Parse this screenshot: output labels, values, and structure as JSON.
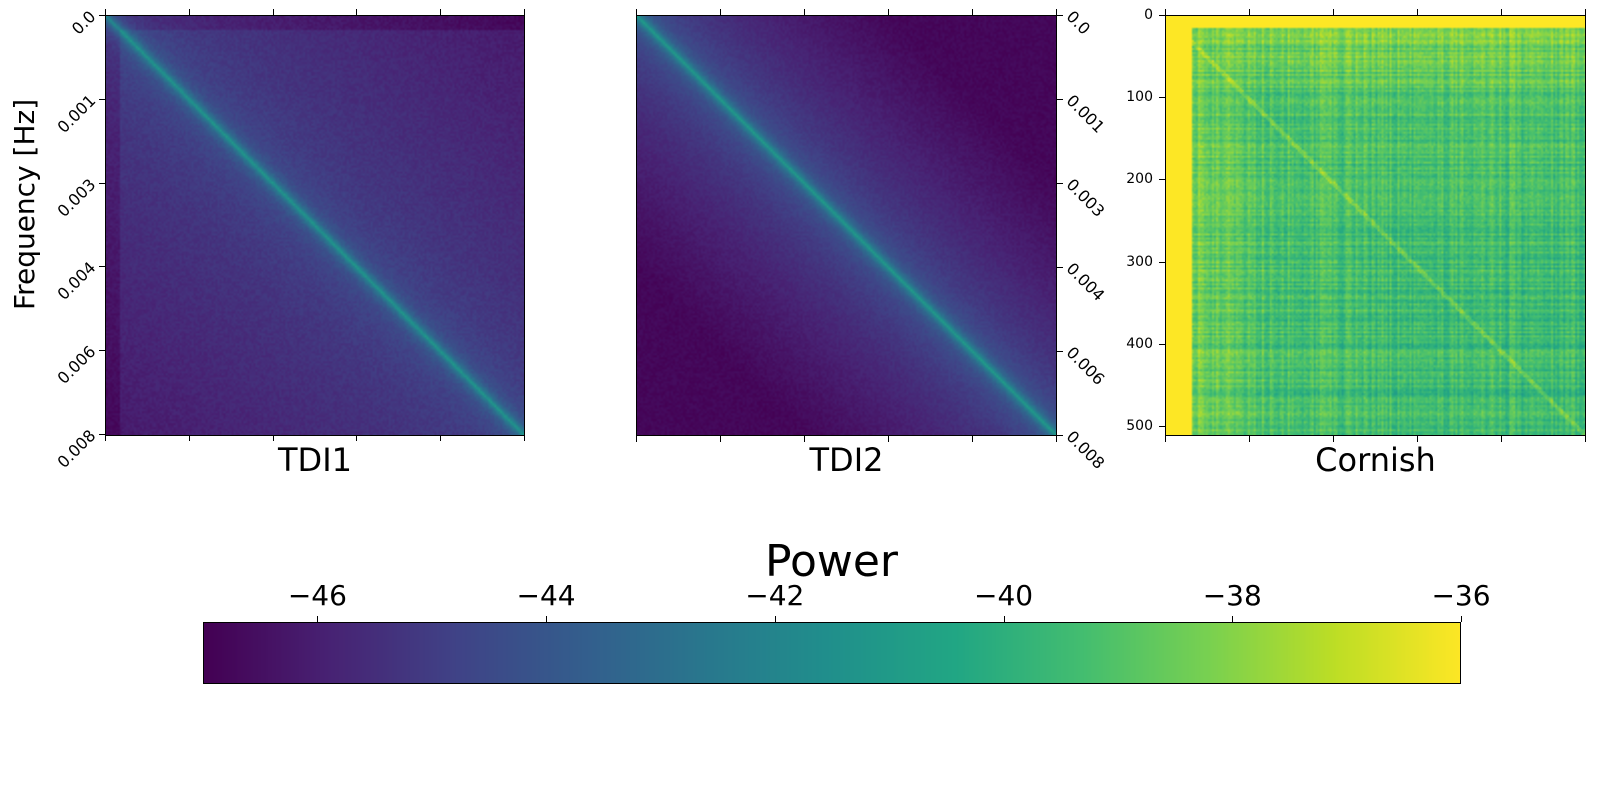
{
  "figure": {
    "ylabel": "Frequency [Hz]"
  },
  "panels": [
    {
      "id": "tdi1",
      "title": "TDI1",
      "yticks": [
        "0.0",
        "0.001",
        "0.003",
        "0.004",
        "0.006",
        "0.008"
      ],
      "ytick_side": "left",
      "ytick_rotation_deg": -45
    },
    {
      "id": "tdi2",
      "title": "TDI2",
      "yticks": [
        "0.0",
        "0.001",
        "0.003",
        "0.004",
        "0.006",
        "0.008"
      ],
      "ytick_side": "right",
      "ytick_rotation_deg": 45
    },
    {
      "id": "cornish",
      "title": "Cornish",
      "yticks": [
        "0",
        "100",
        "200",
        "300",
        "400",
        "500"
      ],
      "ytick_side": "left",
      "ytick_rotation_deg": 0
    }
  ],
  "colorbar": {
    "title": "Power",
    "ticks": [
      "−46",
      "−44",
      "−42",
      "−40",
      "−38",
      "−36"
    ],
    "tick_values": [
      -46,
      -44,
      -42,
      -40,
      -38,
      -36
    ],
    "vmin": -47,
    "vmax": -36,
    "colormap": "viridis"
  },
  "chart_data": [
    {
      "type": "heatmap",
      "title": "TDI1",
      "ylabel": "Frequency [Hz]",
      "y_tick_labels": [
        "0.0",
        "0.001",
        "0.003",
        "0.004",
        "0.006",
        "0.008"
      ],
      "ylim": [
        0.0,
        0.008
      ],
      "colorbar_label": "Power",
      "value_range": [
        -47,
        -36
      ],
      "description_values": {
        "diagonal": -42,
        "background": -45,
        "corner_low": -46.5
      }
    },
    {
      "type": "heatmap",
      "title": "TDI2",
      "y_tick_labels": [
        "0.0",
        "0.001",
        "0.003",
        "0.004",
        "0.006",
        "0.008"
      ],
      "ylim": [
        0.0,
        0.008
      ],
      "colorbar_label": "Power",
      "value_range": [
        -47,
        -36
      ],
      "description_values": {
        "diagonal": -42,
        "background": -45,
        "corner_low": -46.8
      }
    },
    {
      "type": "heatmap",
      "title": "Cornish",
      "y_tick_labels": [
        "0",
        "100",
        "200",
        "300",
        "400",
        "500"
      ],
      "ylim": [
        0,
        512
      ],
      "colorbar_label": "Power",
      "value_range": [
        -47,
        -36
      ],
      "description_values": {
        "edge": -36,
        "interior": -39.5
      }
    }
  ]
}
